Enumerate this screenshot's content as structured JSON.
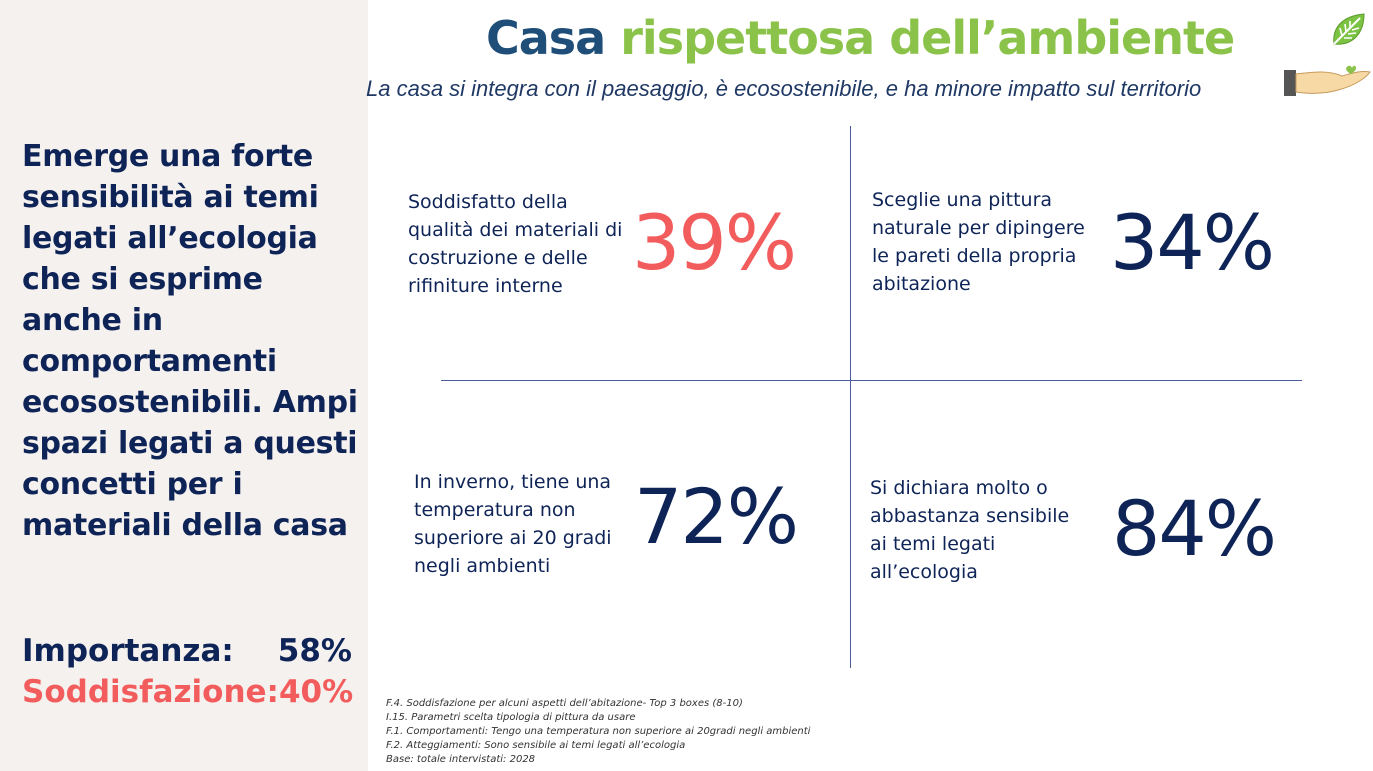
{
  "title": {
    "part1": "Casa",
    "part2": "rispettosa dell’ambiente"
  },
  "subtitle": "La casa si integra con il paesaggio, è ecosostenibile, e ha minore impatto sul territorio",
  "left_panel": {
    "statement": "Emerge una forte sensibilità ai temi legati all’ecologia che si esprime anche in comportamenti ecosostenibili. Ampi spazi legati a questi concetti per i materiali della casa",
    "importance_label": "Importanza:",
    "importance_value": "58%",
    "satisfaction_label": "Soddisfazione:",
    "satisfaction_value": "40%"
  },
  "quadrants": [
    {
      "text": "Soddisfatto della qualità dei materiali di costruzione e delle rifiniture interne",
      "value": "39%"
    },
    {
      "text": "Sceglie una pittura naturale per dipingere le pareti della propria abitazione",
      "value": "34%"
    },
    {
      "text": "In inverno, tiene una temperatura non superiore ai 20 gradi negli ambienti",
      "value": "72%"
    },
    {
      "text": "Si dichiara molto o abbastanza sensibile ai temi legati all’ecologia",
      "value": "84%"
    }
  ],
  "footnotes": [
    "F.4. Soddisfazione per alcuni aspetti dell’abitazione- Top 3 boxes (8-10)",
    "I.15. Parametri scelta tipologia di pittura da usare",
    "F.1. Comportamenti: Tengo una temperatura non superiore ai 20gradi negli ambienti",
    "F.2. Atteggiamenti: Sono sensibile ai temi legati all’ecologia",
    "Base: totale intervistati: 2028"
  ],
  "icons": {
    "leaf": "leaf-icon",
    "hand": "hand-icon"
  },
  "colors": {
    "navy": "#0e2457",
    "accent_red": "#f25c5c",
    "title_blue": "#1f4e79",
    "title_green": "#8bc34a",
    "panel_bg": "#f5f1ef"
  }
}
